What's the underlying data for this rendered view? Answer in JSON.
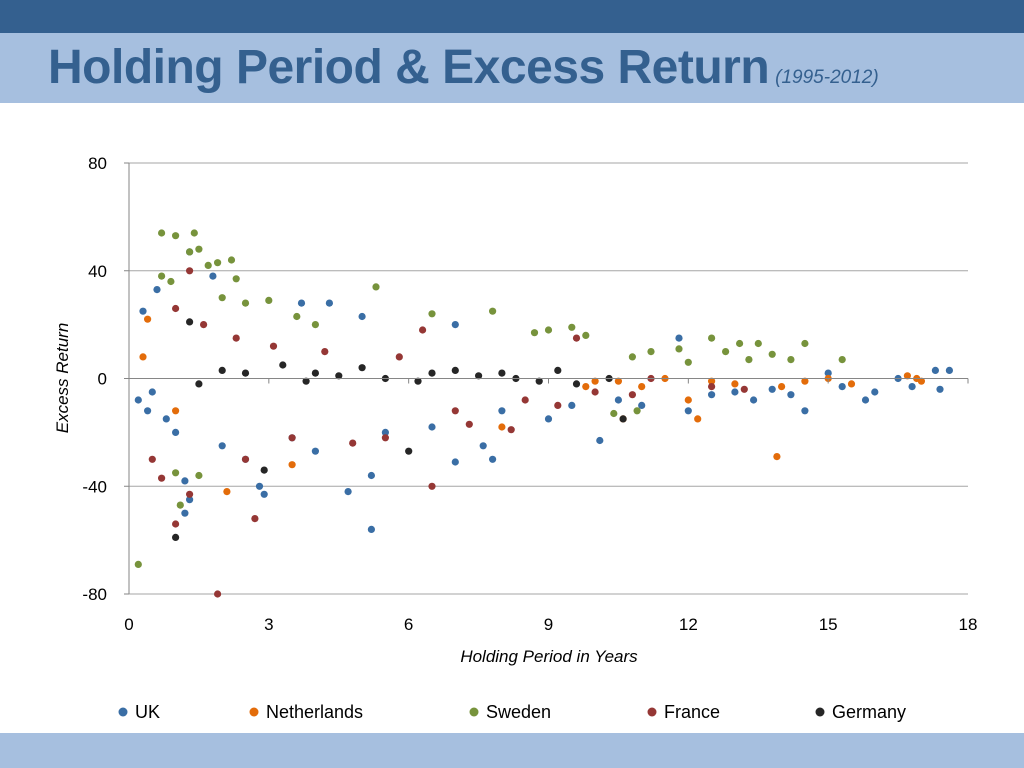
{
  "slide": {
    "title": "Holding Period & Excess Return",
    "subtitle": "(1995-2012)"
  },
  "colors": {
    "top_bar": "#34608f",
    "title_bar": "#a6bfdf",
    "title_text": "#34608f",
    "grid": "#a6a6a6"
  },
  "chart_data": {
    "type": "scatter",
    "title": "",
    "xlabel": "Holding Period in Years",
    "ylabel": "Excess Return",
    "xlim": [
      0,
      18
    ],
    "ylim": [
      -80,
      80
    ],
    "xticks": [
      0,
      3,
      6,
      9,
      12,
      15,
      18
    ],
    "yticks": [
      80,
      40,
      0,
      -40,
      -80
    ],
    "grid": "horizontal",
    "legend_position": "bottom",
    "series": [
      {
        "name": "UK",
        "color": "#3a6ea5",
        "points": [
          [
            0.3,
            25
          ],
          [
            0.6,
            33
          ],
          [
            1.3,
            47
          ],
          [
            1.8,
            38
          ],
          [
            1.0,
            -20
          ],
          [
            1.2,
            -38
          ],
          [
            1.3,
            -45
          ],
          [
            1.2,
            -50
          ],
          [
            2.5,
            -30
          ],
          [
            2.8,
            -40
          ],
          [
            2.9,
            -43
          ],
          [
            3.7,
            28
          ],
          [
            4.3,
            28
          ],
          [
            4.7,
            -42
          ],
          [
            5.0,
            23
          ],
          [
            5.2,
            -56
          ],
          [
            5.2,
            -36
          ],
          [
            7.0,
            20
          ],
          [
            7.0,
            -31
          ],
          [
            7.6,
            -25
          ],
          [
            7.8,
            -30
          ],
          [
            8.0,
            -12
          ],
          [
            10.1,
            -23
          ],
          [
            11.8,
            15
          ],
          [
            12.0,
            -12
          ],
          [
            13.4,
            -8
          ],
          [
            14.5,
            -12
          ],
          [
            15.8,
            -8
          ],
          [
            16.0,
            -5
          ],
          [
            17.3,
            3
          ],
          [
            17.6,
            3
          ],
          [
            17.4,
            -4
          ],
          [
            16.8,
            -3
          ],
          [
            0.2,
            -8
          ],
          [
            0.4,
            -12
          ],
          [
            0.5,
            -5
          ],
          [
            0.8,
            -15
          ],
          [
            2.0,
            -25
          ],
          [
            3.5,
            -22
          ],
          [
            4.0,
            -27
          ],
          [
            5.5,
            -20
          ],
          [
            6.5,
            -18
          ],
          [
            9.0,
            -15
          ],
          [
            9.5,
            -10
          ],
          [
            10.5,
            -8
          ],
          [
            11.0,
            -10
          ],
          [
            12.5,
            -6
          ],
          [
            13.0,
            -5
          ],
          [
            13.8,
            -4
          ],
          [
            14.2,
            -6
          ],
          [
            15.3,
            -3
          ],
          [
            15.0,
            2
          ],
          [
            16.5,
            0
          ]
        ]
      },
      {
        "name": "Netherlands",
        "color": "#e36c0a",
        "points": [
          [
            0.4,
            22
          ],
          [
            0.3,
            8
          ],
          [
            1.0,
            -12
          ],
          [
            2.1,
            -42
          ],
          [
            3.5,
            -32
          ],
          [
            8.0,
            -18
          ],
          [
            10.6,
            -15
          ],
          [
            12.0,
            -8
          ],
          [
            12.2,
            -15
          ],
          [
            13.9,
            -29
          ],
          [
            16.7,
            1
          ],
          [
            16.9,
            0
          ],
          [
            17.0,
            -1
          ],
          [
            14.5,
            -1
          ],
          [
            15.0,
            0
          ],
          [
            15.5,
            -2
          ],
          [
            11.0,
            -3
          ],
          [
            10.0,
            -1
          ],
          [
            9.8,
            -3
          ],
          [
            13.0,
            -2
          ],
          [
            12.5,
            -1
          ],
          [
            14.0,
            -3
          ],
          [
            11.5,
            0
          ],
          [
            10.5,
            -1
          ]
        ]
      },
      {
        "name": "Sweden",
        "color": "#77933c",
        "points": [
          [
            0.2,
            -69
          ],
          [
            0.7,
            54
          ],
          [
            1.0,
            53
          ],
          [
            1.4,
            54
          ],
          [
            1.3,
            47
          ],
          [
            1.5,
            48
          ],
          [
            1.7,
            42
          ],
          [
            1.9,
            43
          ],
          [
            2.2,
            44
          ],
          [
            2.3,
            37
          ],
          [
            0.7,
            38
          ],
          [
            0.9,
            36
          ],
          [
            1.1,
            -47
          ],
          [
            1.0,
            -35
          ],
          [
            1.5,
            -36
          ],
          [
            3.0,
            29
          ],
          [
            3.6,
            23
          ],
          [
            5.3,
            34
          ],
          [
            7.8,
            25
          ],
          [
            9.5,
            19
          ],
          [
            11.2,
            10
          ],
          [
            12.5,
            15
          ],
          [
            13.1,
            13
          ],
          [
            13.5,
            13
          ],
          [
            14.5,
            13
          ],
          [
            15.3,
            7
          ],
          [
            10.4,
            -13
          ],
          [
            10.9,
            -12
          ],
          [
            2.0,
            30
          ],
          [
            2.5,
            28
          ],
          [
            4.0,
            20
          ],
          [
            6.5,
            24
          ],
          [
            8.7,
            17
          ],
          [
            9.0,
            18
          ],
          [
            9.8,
            16
          ],
          [
            10.8,
            8
          ],
          [
            11.8,
            11
          ],
          [
            12.8,
            10
          ],
          [
            13.8,
            9
          ],
          [
            14.2,
            7
          ],
          [
            12.0,
            6
          ],
          [
            13.3,
            7
          ]
        ]
      },
      {
        "name": "France",
        "color": "#953735",
        "points": [
          [
            0.5,
            -30
          ],
          [
            0.7,
            -37
          ],
          [
            1.0,
            -54
          ],
          [
            1.3,
            -43
          ],
          [
            1.3,
            40
          ],
          [
            1.9,
            -80
          ],
          [
            2.7,
            -52
          ],
          [
            2.5,
            -30
          ],
          [
            3.5,
            -22
          ],
          [
            5.5,
            -22
          ],
          [
            6.3,
            18
          ],
          [
            6.5,
            -40
          ],
          [
            7.3,
            -17
          ],
          [
            8.2,
            -19
          ],
          [
            9.2,
            -10
          ],
          [
            9.6,
            15
          ],
          [
            10.8,
            -6
          ],
          [
            11.2,
            0
          ],
          [
            12.5,
            -3
          ],
          [
            13.2,
            -4
          ],
          [
            1.0,
            26
          ],
          [
            1.6,
            20
          ],
          [
            2.3,
            15
          ],
          [
            3.1,
            12
          ],
          [
            4.2,
            10
          ],
          [
            4.8,
            -24
          ],
          [
            5.8,
            8
          ],
          [
            7.0,
            -12
          ],
          [
            8.5,
            -8
          ],
          [
            10.0,
            -5
          ]
        ]
      },
      {
        "name": "Germany",
        "color": "#262626",
        "points": [
          [
            1.0,
            -59
          ],
          [
            2.9,
            -34
          ],
          [
            6.0,
            -27
          ],
          [
            10.6,
            -15
          ],
          [
            1.3,
            21
          ],
          [
            2.0,
            3
          ],
          [
            2.5,
            2
          ],
          [
            3.3,
            5
          ],
          [
            4.0,
            2
          ],
          [
            5.0,
            4
          ],
          [
            5.5,
            0
          ],
          [
            6.5,
            2
          ],
          [
            7.5,
            1
          ],
          [
            8.3,
            0
          ],
          [
            8.8,
            -1
          ],
          [
            9.2,
            3
          ],
          [
            9.6,
            -2
          ],
          [
            10.3,
            0
          ],
          [
            1.5,
            -2
          ],
          [
            3.8,
            -1
          ],
          [
            4.5,
            1
          ],
          [
            6.2,
            -1
          ],
          [
            7.0,
            3
          ],
          [
            8.0,
            2
          ]
        ]
      }
    ]
  }
}
